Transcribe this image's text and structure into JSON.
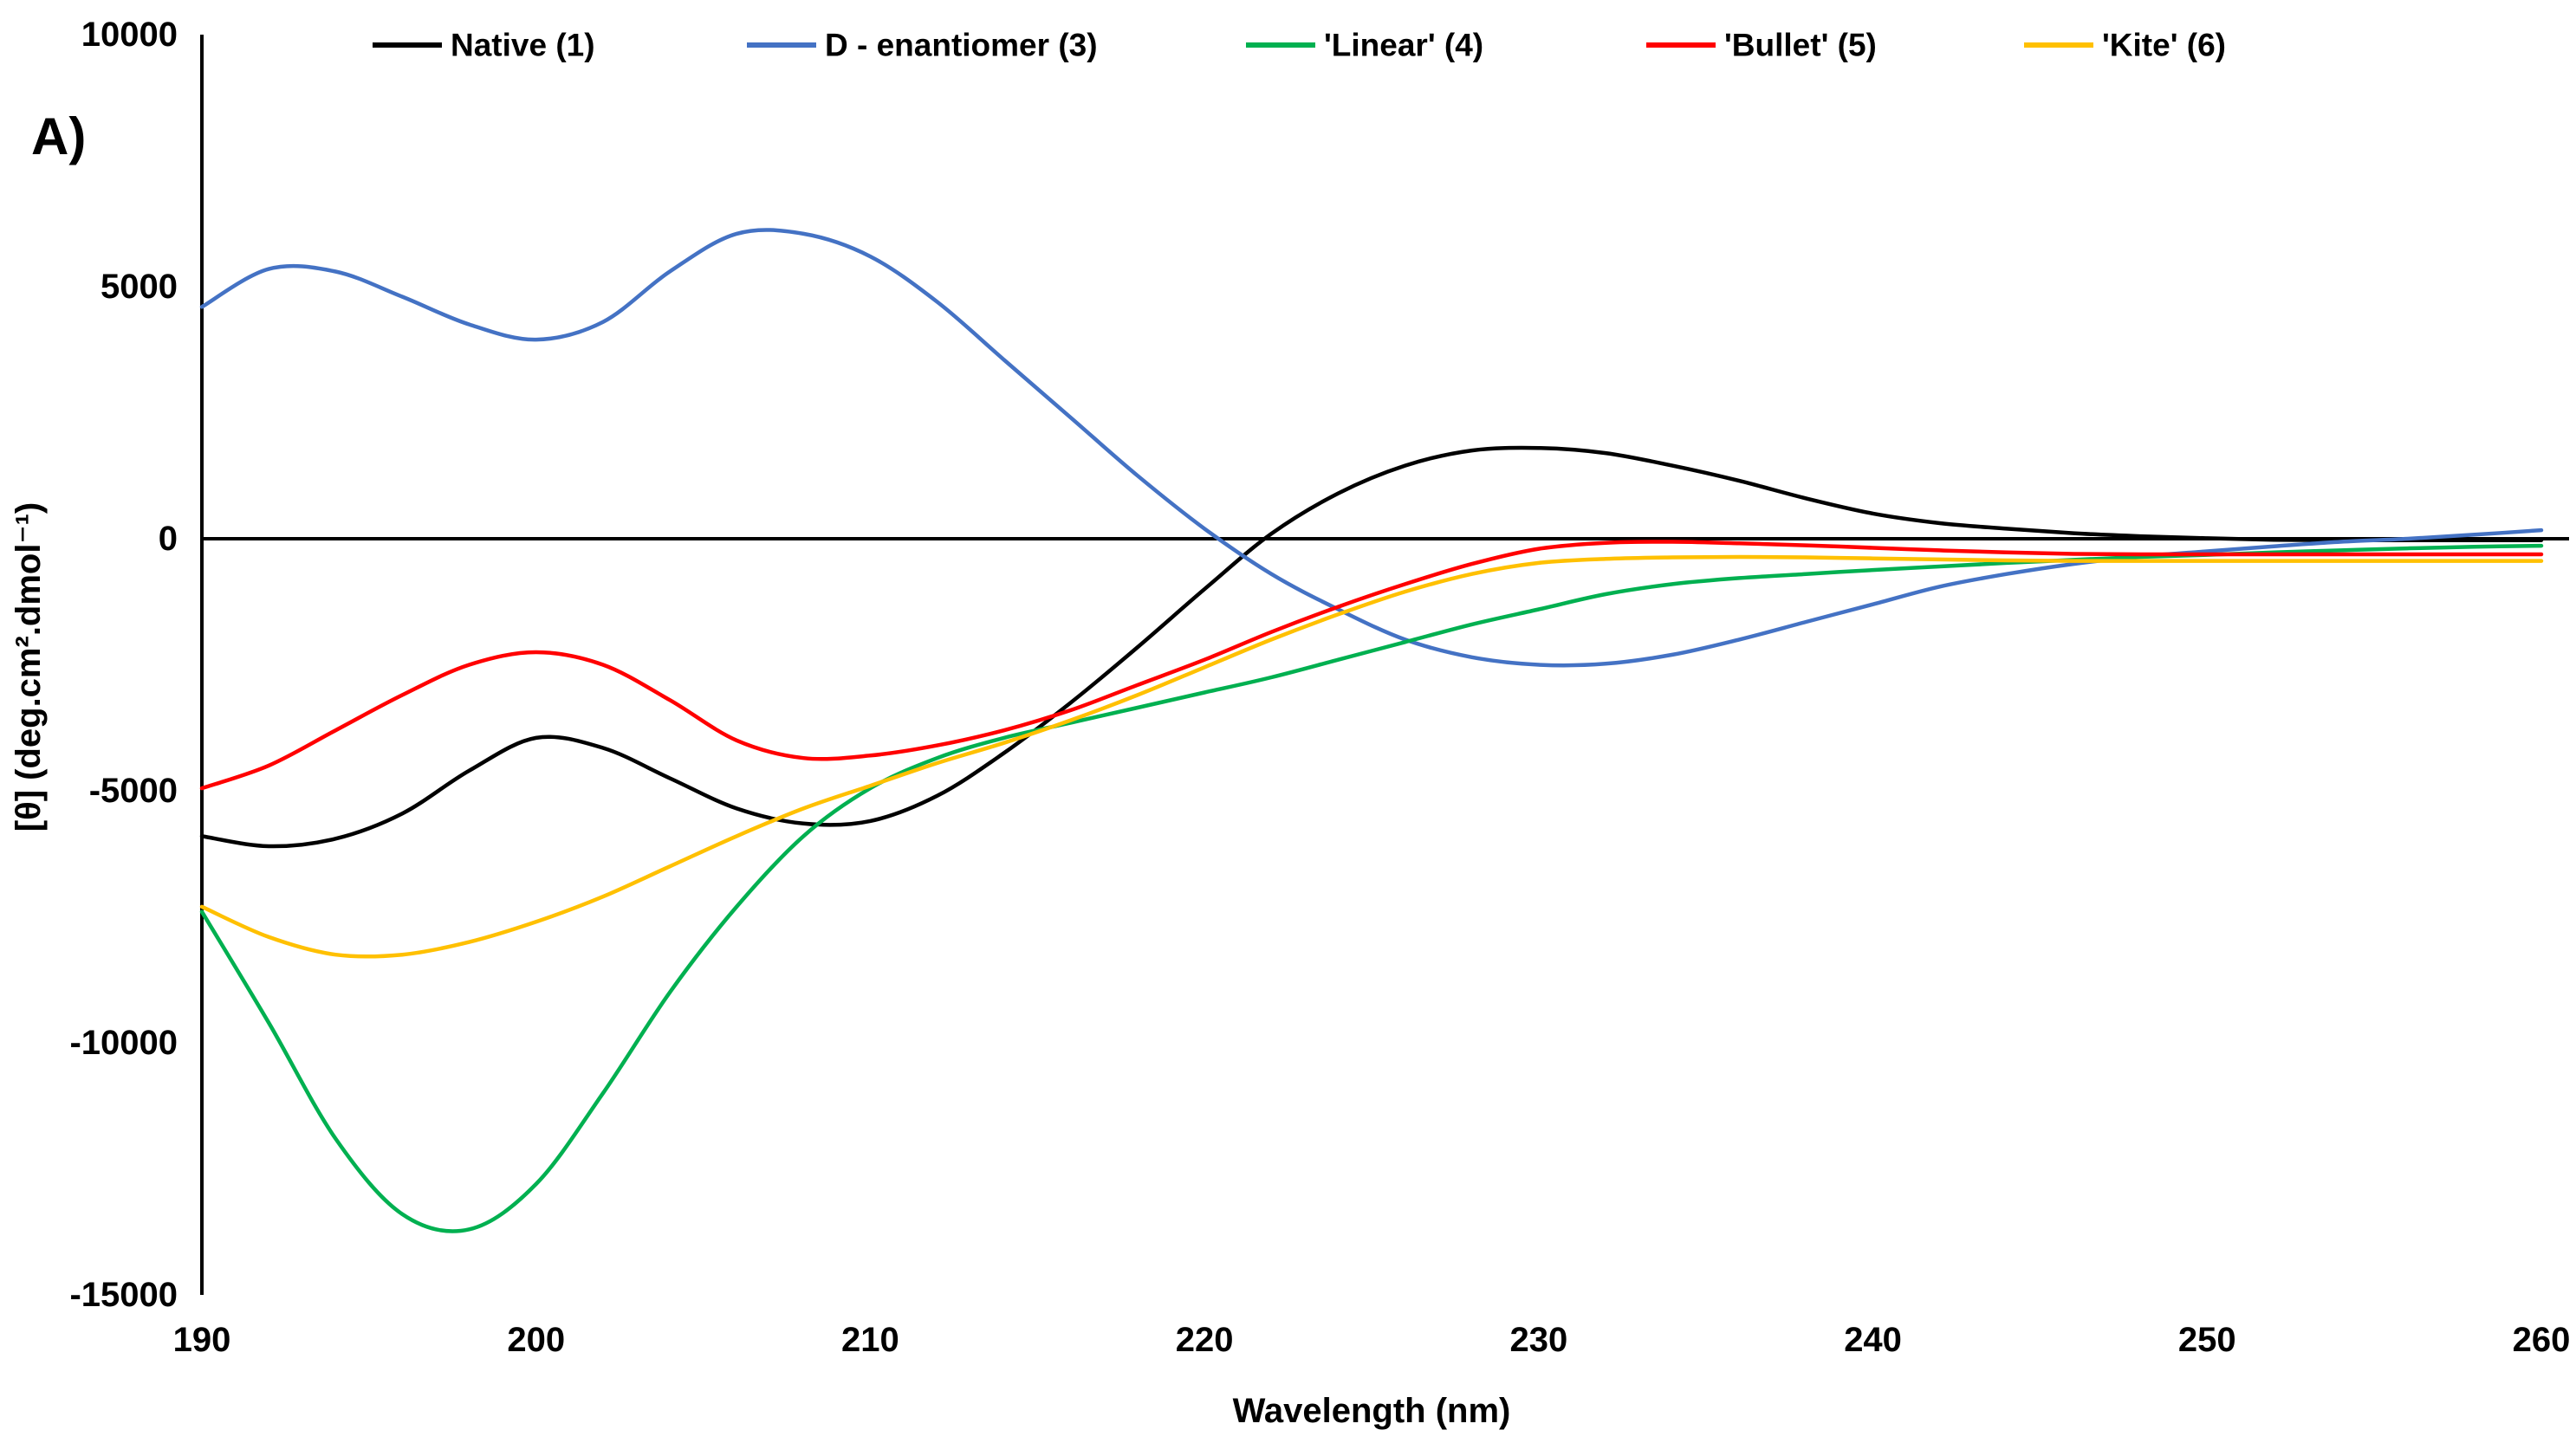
{
  "panel_label": "A)",
  "chart_data": {
    "type": "line",
    "title": "",
    "xlabel": "Wavelength (nm)",
    "ylabel": "[θ] (deg.cm².dmol⁻¹)",
    "xlim": [
      190,
      260
    ],
    "ylim": [
      -15000,
      10000
    ],
    "x_ticks": [
      190,
      200,
      210,
      220,
      230,
      240,
      250,
      260
    ],
    "y_ticks": [
      10000,
      5000,
      0,
      -5000,
      -10000,
      -15000
    ],
    "grid": false,
    "legend_position": "top",
    "zero_baseline": true,
    "x": [
      190,
      192,
      194,
      196,
      198,
      200,
      202,
      204,
      206,
      208,
      210,
      212,
      214,
      216,
      218,
      220,
      222,
      224,
      226,
      228,
      230,
      232,
      234,
      236,
      238,
      240,
      242,
      244,
      246,
      248,
      250,
      252,
      254,
      256,
      258,
      260
    ],
    "series": [
      {
        "name": "Native (1)",
        "color": "#000000",
        "values": [
          -5900,
          -6100,
          -5950,
          -5450,
          -4600,
          -3950,
          -4150,
          -4750,
          -5350,
          -5650,
          -5600,
          -5100,
          -4250,
          -3250,
          -2150,
          -1000,
          100,
          900,
          1450,
          1750,
          1800,
          1700,
          1450,
          1150,
          800,
          500,
          310,
          200,
          110,
          50,
          10,
          -20,
          -30,
          -30,
          -30,
          -30
        ]
      },
      {
        "name": "D - enantiomer (3)",
        "color": "#4472C4",
        "values": [
          4600,
          5350,
          5300,
          4800,
          4250,
          3950,
          4300,
          5300,
          6050,
          6050,
          5600,
          4700,
          3550,
          2400,
          1250,
          200,
          -700,
          -1400,
          -2000,
          -2350,
          -2500,
          -2480,
          -2300,
          -2000,
          -1650,
          -1300,
          -950,
          -700,
          -500,
          -350,
          -250,
          -150,
          -60,
          0,
          80,
          170
        ]
      },
      {
        "name": "'Linear' (4)",
        "color": "#00B050",
        "values": [
          -7400,
          -9600,
          -11900,
          -13400,
          -13700,
          -12800,
          -11000,
          -9000,
          -7300,
          -5900,
          -4950,
          -4350,
          -3950,
          -3650,
          -3350,
          -3050,
          -2750,
          -2400,
          -2050,
          -1700,
          -1400,
          -1100,
          -900,
          -780,
          -700,
          -620,
          -550,
          -480,
          -420,
          -360,
          -320,
          -270,
          -230,
          -190,
          -160,
          -140
        ]
      },
      {
        "name": "'Bullet' (5)",
        "color": "#FF0000",
        "values": [
          -4950,
          -4500,
          -3800,
          -3100,
          -2500,
          -2250,
          -2500,
          -3200,
          -4000,
          -4350,
          -4300,
          -4100,
          -3800,
          -3400,
          -2900,
          -2400,
          -1850,
          -1350,
          -900,
          -500,
          -200,
          -80,
          -60,
          -90,
          -130,
          -180,
          -230,
          -270,
          -300,
          -310,
          -310,
          -310,
          -310,
          -310,
          -310,
          -310
        ]
      },
      {
        "name": "'Kite' (6)",
        "color": "#FFC000",
        "values": [
          -7300,
          -7900,
          -8250,
          -8250,
          -8000,
          -7600,
          -7100,
          -6500,
          -5900,
          -5350,
          -4900,
          -4450,
          -4050,
          -3600,
          -3100,
          -2550,
          -2000,
          -1500,
          -1050,
          -700,
          -480,
          -400,
          -370,
          -360,
          -370,
          -390,
          -410,
          -430,
          -440,
          -440,
          -440,
          -440,
          -440,
          -440,
          -440,
          -440
        ]
      }
    ]
  }
}
